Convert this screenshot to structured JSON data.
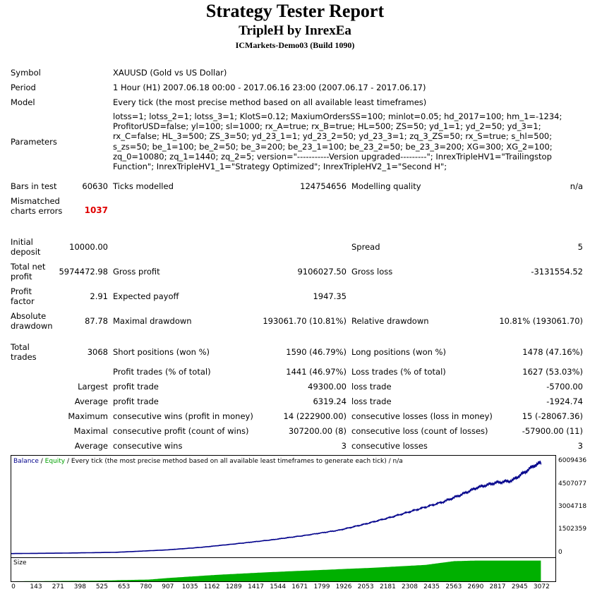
{
  "header": {
    "title": "Strategy Tester Report",
    "ea_name": "TripleH by InrexEa",
    "server": "ICMarkets-Demo03 (Build 1090)"
  },
  "info": {
    "symbol_label": "Symbol",
    "symbol_value": "XAUUSD (Gold vs US Dollar)",
    "period_label": "Period",
    "period_value": "1 Hour (H1) 2007.06.18 00:00 - 2017.06.16 23:00 (2007.06.17 - 2017.06.17)",
    "model_label": "Model",
    "model_value": "Every tick (the most precise method based on all available least timeframes)",
    "parameters_label": "Parameters",
    "parameters_value": "lotss=1; lotss_2=1; lotss_3=1; KlotS=0.12; MaxiumOrdersSS=100; minlot=0.05; hd_2017=100; hm_1=-1234; ProfitorUSD=false; yl=100; sl=1000; rx_A=true; rx_B=true; HL=500; ZS=50; yd_1=1; yd_2=50; yd_3=1; rx_C=false; HL_3=500; ZS_3=50; yd_23_1=1; yd_23_2=50; yd_23_3=1; zq_3_ZS=50; rx_S=true; s_hl=500; s_zs=50; be_1=100; be_2=50; be_3=200; be_23_1=100; be_23_2=50; be_23_3=200; XG=300; XG_2=100; zq_0=10080; zq_1=1440; zq_2=5; version=\"-----------Version upgraded---------\"; InrexTripleHV1=\"Trailingstop Function\"; InrexTripleHV1_1=\"Strategy Optimized\"; InrexTripleHV2_1=\"Second H\";"
  },
  "stats": {
    "bars_label": "Bars in test",
    "bars_value": "60630",
    "ticks_label": "Ticks modelled",
    "ticks_value": "124754656",
    "quality_label": "Modelling quality",
    "quality_value": "n/a",
    "mismatched_label": "Mismatched charts errors",
    "mismatched_value": "1037",
    "deposit_label": "Initial deposit",
    "deposit_value": "10000.00",
    "spread_label": "Spread",
    "spread_value": "5",
    "net_profit_label": "Total net profit",
    "net_profit_value": "5974472.98",
    "gross_profit_label": "Gross profit",
    "gross_profit_value": "9106027.50",
    "gross_loss_label": "Gross loss",
    "gross_loss_value": "-3131554.52",
    "profit_factor_label": "Profit factor",
    "profit_factor_value": "2.91",
    "expected_payoff_label": "Expected payoff",
    "expected_payoff_value": "1947.35",
    "abs_dd_label": "Absolute drawdown",
    "abs_dd_value": "87.78",
    "max_dd_label": "Maximal drawdown",
    "max_dd_value": "193061.70 (10.81%)",
    "rel_dd_label": "Relative drawdown",
    "rel_dd_value": "10.81% (193061.70)",
    "total_trades_label": "Total trades",
    "total_trades_value": "3068",
    "short_label": "Short positions (won %)",
    "short_value": "1590 (46.79%)",
    "long_label": "Long positions (won %)",
    "long_value": "1478 (47.16%)",
    "profit_trades_label": "Profit trades (% of total)",
    "profit_trades_value": "1441 (46.97%)",
    "loss_trades_label": "Loss trades (% of total)",
    "loss_trades_value": "1627 (53.03%)",
    "largest_label": "Largest",
    "largest_profit_label": "profit trade",
    "largest_profit_value": "49300.00",
    "largest_loss_label": "loss trade",
    "largest_loss_value": "-5700.00",
    "average_label": "Average",
    "average_profit_label": "profit trade",
    "average_profit_value": "6319.24",
    "average_loss_label": "loss trade",
    "average_loss_value": "-1924.74",
    "maximum_label": "Maximum",
    "max_cons_wins_label": "consecutive wins (profit in money)",
    "max_cons_wins_value": "14 (222900.00)",
    "max_cons_losses_label": "consecutive losses (loss in money)",
    "max_cons_losses_value": "15 (-28067.36)",
    "maximal_label": "Maximal",
    "maximal_cons_profit_label": "consecutive profit (count of wins)",
    "maximal_cons_profit_value": "307200.00 (8)",
    "maximal_cons_loss_label": "consecutive loss (count of losses)",
    "maximal_cons_loss_value": "-57900.00 (11)",
    "avg_label": "Average",
    "avg_cons_wins_label": "consecutive wins",
    "avg_cons_wins_value": "3",
    "avg_cons_losses_label": "consecutive losses",
    "avg_cons_losses_value": "3"
  },
  "chart_data": {
    "type": "line",
    "legend": {
      "balance": "Balance",
      "sep1": " / ",
      "equity": "Equity",
      "rest": " / Every tick (the most precise method based on all available least timeframes to generate each tick) / n/a"
    },
    "size_label": "Size",
    "colors": {
      "balance": "#00008b",
      "equity": "#00a000",
      "size": "#00b000"
    },
    "y_ticks": [
      "6009436",
      "4507077",
      "3004718",
      "1502359",
      "0"
    ],
    "y_tick_values": [
      6009436,
      4507077,
      3004718,
      1502359,
      0
    ],
    "x_ticks": [
      "0",
      "143",
      "271",
      "398",
      "525",
      "653",
      "780",
      "907",
      "1035",
      "1162",
      "1289",
      "1417",
      "1544",
      "1671",
      "1799",
      "1926",
      "2053",
      "2181",
      "2308",
      "2435",
      "2563",
      "2690",
      "2817",
      "2945",
      "3072"
    ],
    "ylim": [
      -190000,
      6300000
    ],
    "xlim": [
      0,
      3140
    ],
    "balance": {
      "x": [
        0,
        300,
        600,
        900,
        1100,
        1300,
        1500,
        1700,
        1900,
        2050,
        2200,
        2350,
        2500,
        2600,
        2700,
        2800,
        2900,
        2980,
        3030,
        3068
      ],
      "y": [
        10000,
        40000,
        90000,
        250000,
        420000,
        650000,
        900000,
        1200000,
        1550000,
        1950000,
        2400000,
        2900000,
        3400000,
        3850000,
        4350000,
        4650000,
        4800000,
        5400000,
        5800000,
        5984000
      ]
    },
    "size": {
      "x": [
        0,
        500,
        800,
        907,
        1200,
        1500,
        1800,
        2100,
        2400,
        2563,
        2700,
        3068
      ],
      "y": [
        0,
        0.03,
        0.08,
        0.15,
        0.3,
        0.42,
        0.52,
        0.62,
        0.75,
        0.92,
        0.95,
        0.95
      ]
    }
  }
}
